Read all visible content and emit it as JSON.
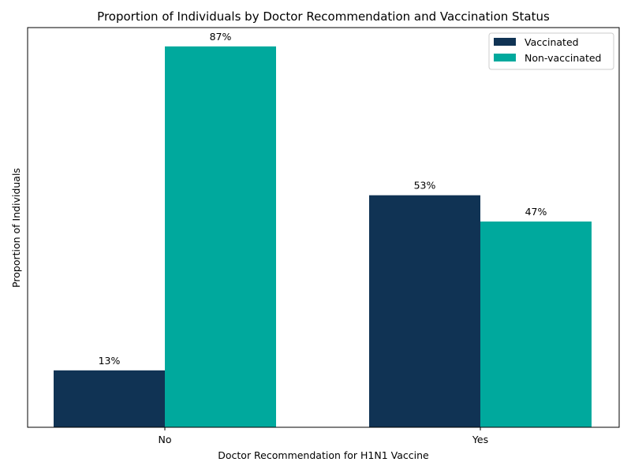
{
  "chart_data": {
    "type": "bar",
    "title": "Proportion of Individuals by Doctor Recommendation and Vaccination Status",
    "xlabel": "Doctor Recommendation for H1N1 Vaccine",
    "ylabel": "Proportion of Individuals",
    "categories": [
      "No",
      "Yes"
    ],
    "series": [
      {
        "name": "Vaccinated",
        "color": "#103354",
        "values": [
          0.13,
          0.53
        ],
        "labels": [
          "13%",
          "53%"
        ]
      },
      {
        "name": "Non-vaccinated",
        "color": "#00a99d",
        "values": [
          0.87,
          0.47
        ],
        "labels": [
          "87%",
          "47%"
        ]
      }
    ],
    "ylim": [
      0,
      0.913
    ],
    "y_ticks_shown": false,
    "grid": false,
    "legend": "top-right"
  }
}
